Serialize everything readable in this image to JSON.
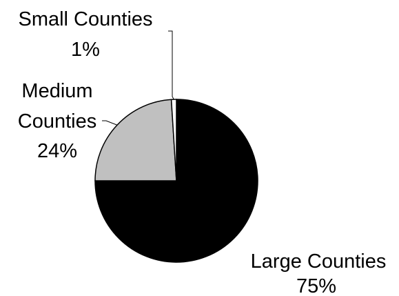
{
  "chart_data": {
    "type": "pie",
    "title": "",
    "legend": "none",
    "slices": [
      {
        "label_lines": [
          "Large Counties"
        ],
        "value": 75,
        "value_label": "75%",
        "color": "#000000"
      },
      {
        "label_lines": [
          "Medium",
          "Counties"
        ],
        "value": 24,
        "value_label": "24%",
        "color": "#c0c0c0"
      },
      {
        "label_lines": [
          "Small Counties"
        ],
        "value": 1,
        "value_label": "1%",
        "color": "#ffffff"
      }
    ]
  }
}
